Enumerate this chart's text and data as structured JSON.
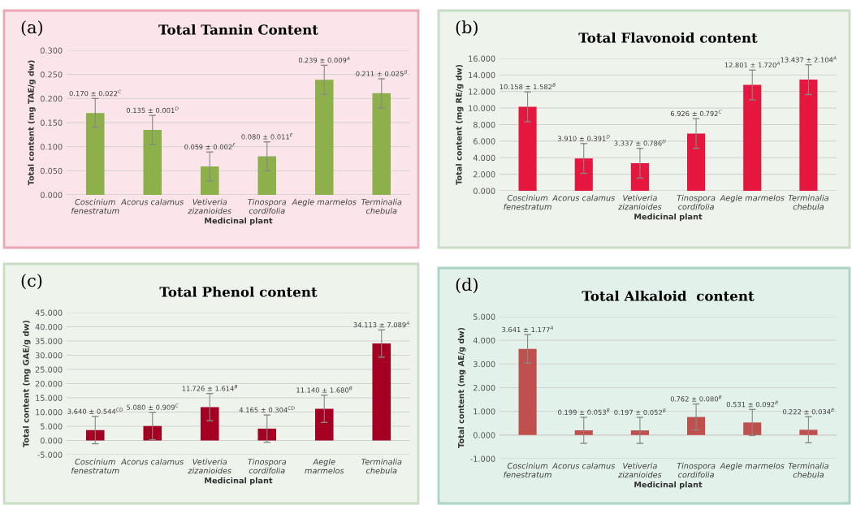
{
  "chart_data": [
    {
      "type": "bar",
      "title": "Total Tannin Content",
      "xlabel": "Medicinal plant",
      "ylabel": "Total content (mg TAE/g dw)",
      "annotations": [
        "(a)"
      ],
      "categories": [
        "Coscinium\nfenestratum",
        "Acorus calamus",
        "Vetiveria\nzizanioides",
        "Tinospora\ncordifolia",
        "Aegle marmelos",
        "Terminalia\nchebula"
      ],
      "values": [
        0.17,
        0.135,
        0.059,
        0.08,
        0.239,
        0.211
      ],
      "color": "#8db04a",
      "errors": [
        0.03,
        0.03,
        0.03,
        0.03,
        0.03,
        0.03
      ],
      "value_labels": [
        "0.170 ± 0.022$^{C}$",
        "0.135 ± 0.001$^{D}$",
        "0.059 ± 0.002$^{F}$",
        "0.080 ± 0.011$^{E}$",
        "0.239 ± 0.009$^{A}$",
        "0.211 ± 0.025$^{B}$"
      ],
      "ylim": [
        0,
        0.3
      ],
      "yticks": [
        {
          "value": 0,
          "label": "0.000"
        },
        {
          "value": 0.05,
          "label": "0.050"
        },
        {
          "value": 0.1,
          "label": "0.100"
        },
        {
          "value": 0.15,
          "label": "0.150"
        },
        {
          "value": 0.2,
          "label": "0.200"
        },
        {
          "value": 0.25,
          "label": "0.250"
        },
        {
          "value": 0.3,
          "label": "0.300"
        }
      ],
      "grid": "y"
    },
    {
      "type": "bar",
      "title": "Total Flavonoid content",
      "xlabel": "Medicinal plant",
      "ylabel": "Total content (mg RE/g dw)",
      "annotations": [
        "(b)"
      ],
      "categories": [
        "Coscinium\nfenestratum",
        "Acorus calamus",
        "Vetiveria\nzizanioides",
        "Tinospora\ncordifolia",
        "Aegle marmelos",
        "Terminalia\nchebula"
      ],
      "values": [
        10.158,
        3.91,
        3.337,
        6.926,
        12.801,
        13.437
      ],
      "color": "#e5173f",
      "errors": [
        1.8,
        1.8,
        1.8,
        1.8,
        1.8,
        1.8
      ],
      "value_labels": [
        "10.158 ± 1.582$^{B}$",
        "3.910 ± 0.391$^{D}$",
        "3.337 ± 0.786$^{D}$",
        "6.926 ± 0.792$^{C}$",
        "12.801 ± 1.720$^{A}$",
        "13.437 ± 2.104$^{A}$"
      ],
      "ylim": [
        0,
        16
      ],
      "yticks": [
        {
          "value": 0,
          "label": "0.000"
        },
        {
          "value": 2,
          "label": "2.000"
        },
        {
          "value": 4,
          "label": "4.000"
        },
        {
          "value": 6,
          "label": "6.000"
        },
        {
          "value": 8,
          "label": "8.000"
        },
        {
          "value": 10,
          "label": "10.000"
        },
        {
          "value": 12,
          "label": "12.000"
        },
        {
          "value": 14,
          "label": "14.000"
        },
        {
          "value": 16,
          "label": "16.000"
        }
      ],
      "grid": "y"
    },
    {
      "type": "bar",
      "title": "Total Phenol content",
      "xlabel": "Medicinal plant",
      "ylabel": "Total content (mg GAE/g dw)",
      "annotations": [
        "(c)"
      ],
      "categories": [
        "Coscinium\nfenestratum",
        "Acorus calamus",
        "Vetiveria\nzizanioides",
        "Tinospora\ncordifolia",
        "Aegle\nmarmelos",
        "Terminalia\nchebula"
      ],
      "values": [
        3.64,
        5.08,
        11.726,
        4.165,
        11.14,
        34.113
      ],
      "color": "#a50021",
      "errors": [
        4.8,
        4.8,
        4.8,
        4.8,
        4.8,
        4.8
      ],
      "value_labels": [
        "3.640 ± 0.544$^{CD}$",
        "5.080 ± 0.909$^{C}$",
        "11.726 ± 1.614$^{B}$",
        "4.165 ± 0.304$^{CD}$",
        "11.140 ± 1.680$^{B}$",
        "34.113 ± 7.089$^{A}$"
      ],
      "ylim": [
        -5,
        45
      ],
      "yticks": [
        {
          "value": -5,
          "label": "-5.000"
        },
        {
          "value": 0,
          "label": "0.000"
        },
        {
          "value": 5,
          "label": "5.000"
        },
        {
          "value": 10,
          "label": "10.000"
        },
        {
          "value": 15,
          "label": "15.000"
        },
        {
          "value": 20,
          "label": "20.000"
        },
        {
          "value": 25,
          "label": "25.000"
        },
        {
          "value": 30,
          "label": "30.000"
        },
        {
          "value": 35,
          "label": "35.000"
        },
        {
          "value": 40,
          "label": "40.000"
        },
        {
          "value": 45,
          "label": "45.000"
        }
      ],
      "grid": "y"
    },
    {
      "type": "bar",
      "title": "Total Alkaloid  content",
      "xlabel": "Medicinal plant",
      "ylabel": "Total content (mg AE/g dw)",
      "annotations": [
        "(d)"
      ],
      "categories": [
        "Coscinium\nfenestratum",
        "Acorus calamus",
        "Vetiveria\nzizanioides",
        "Tinospora\ncordifolia",
        "Aegle marmelos",
        "Terminalia\nchebula"
      ],
      "values": [
        3.641,
        0.199,
        0.197,
        0.762,
        0.531,
        0.222
      ],
      "color": "#c0504d",
      "errors": [
        0.6,
        0.55,
        0.55,
        0.55,
        0.55,
        0.55
      ],
      "value_labels": [
        "3.641 ± 1.177$^{A}$",
        "0.199 ± 0.053$^{B}$",
        "0.197 ± 0.052$^{B}$",
        "0.762 ± 0.080$^{B}$",
        "0.531 ± 0.092$^{B}$",
        "0.222 ± 0.034$^{B}$"
      ],
      "ylim": [
        -1,
        5
      ],
      "yticks": [
        {
          "value": -1,
          "label": "-1.000"
        },
        {
          "value": 0,
          "label": "0.000"
        },
        {
          "value": 1,
          "label": "1.000"
        },
        {
          "value": 2,
          "label": "2.000"
        },
        {
          "value": 3,
          "label": "3.000"
        },
        {
          "value": 4,
          "label": "4.000"
        },
        {
          "value": 5,
          "label": "5.000"
        }
      ],
      "grid": "y"
    }
  ]
}
